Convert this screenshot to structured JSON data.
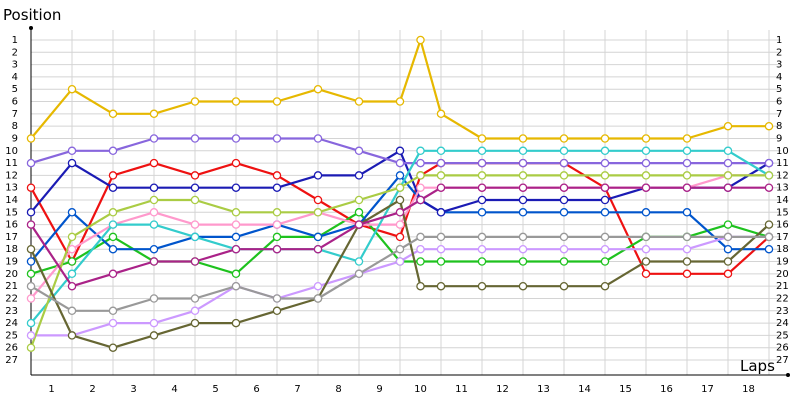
{
  "chart_data": {
    "type": "line",
    "title": "",
    "ylabel": "Position",
    "xlabel": "Laps",
    "x_tick_labels": [
      "1",
      "2",
      "3",
      "4",
      "5",
      "6",
      "7",
      "8",
      "9",
      "10",
      "11",
      "12",
      "13",
      "14",
      "15",
      "16",
      "17",
      "18"
    ],
    "y_tick_labels": [
      "1",
      "2",
      "3",
      "4",
      "5",
      "6",
      "7",
      "8",
      "9",
      "10",
      "11",
      "12",
      "13",
      "14",
      "15",
      "16",
      "17",
      "18",
      "19",
      "20",
      "21",
      "22",
      "23",
      "24",
      "25",
      "26",
      "27"
    ],
    "xlim": [
      0,
      18.2
    ],
    "ylim": [
      1,
      27
    ],
    "y_inverted": true,
    "grid": true,
    "series": [
      {
        "color": "#ee1111",
        "x": [
          0,
          1,
          2,
          3,
          4,
          5,
          6,
          7,
          8,
          9,
          9.5,
          10,
          11,
          12,
          13,
          14,
          15,
          16,
          17,
          18
        ],
        "y": [
          13,
          19,
          12,
          11,
          12,
          11,
          12,
          14,
          16,
          17,
          12,
          11,
          11,
          11,
          11,
          13,
          20,
          20,
          20,
          17
        ]
      },
      {
        "color": "#1ec21e",
        "x": [
          0,
          1,
          2,
          3,
          4,
          5,
          6,
          7,
          8,
          9,
          9.5,
          10,
          11,
          12,
          13,
          14,
          15,
          16,
          17,
          18
        ],
        "y": [
          20,
          19,
          17,
          19,
          19,
          20,
          17,
          17,
          15,
          19,
          19,
          19,
          19,
          19,
          19,
          19,
          17,
          17,
          16,
          17
        ]
      },
      {
        "color": "#0055cc",
        "x": [
          0,
          1,
          2,
          3,
          4,
          5,
          6,
          7,
          8,
          9,
          9.5,
          10,
          11,
          12,
          13,
          14,
          15,
          16,
          17,
          18
        ],
        "y": [
          19,
          15,
          18,
          18,
          17,
          17,
          16,
          17,
          16,
          12,
          14,
          15,
          15,
          15,
          15,
          15,
          15,
          15,
          18,
          18
        ]
      },
      {
        "color": "#1b1bb4",
        "x": [
          0,
          1,
          2,
          3,
          4,
          5,
          6,
          7,
          8,
          9,
          9.5,
          10,
          11,
          12,
          13,
          14,
          15,
          16,
          17,
          18
        ],
        "y": [
          15,
          11,
          13,
          13,
          13,
          13,
          13,
          12,
          12,
          10,
          14,
          15,
          14,
          14,
          14,
          14,
          13,
          13,
          13,
          11
        ]
      },
      {
        "color": "#e6b800",
        "x": [
          0,
          1,
          2,
          3,
          4,
          5,
          6,
          7,
          8,
          9,
          9.5,
          10,
          11,
          12,
          13,
          14,
          15,
          16,
          17,
          18
        ],
        "y": [
          9,
          5,
          7,
          7,
          6,
          6,
          6,
          5,
          6,
          6,
          1,
          7,
          9,
          9,
          9,
          9,
          9,
          9,
          8,
          8
        ]
      },
      {
        "color": "#ff99cc",
        "x": [
          0,
          1,
          2,
          3,
          4,
          5,
          6,
          7,
          8,
          9,
          9.5,
          10,
          11,
          12,
          13,
          14,
          15,
          16,
          17,
          18
        ],
        "y": [
          22,
          18,
          16,
          15,
          16,
          16,
          16,
          15,
          16,
          16,
          13,
          13,
          13,
          13,
          13,
          13,
          13,
          13,
          12,
          12
        ]
      },
      {
        "color": "#8866dd",
        "x": [
          0,
          1,
          2,
          3,
          4,
          5,
          6,
          7,
          8,
          9,
          9.5,
          10,
          11,
          12,
          13,
          14,
          15,
          16,
          17,
          18
        ],
        "y": [
          11,
          10,
          10,
          9,
          9,
          9,
          9,
          9,
          10,
          11,
          11,
          11,
          11,
          11,
          11,
          11,
          11,
          11,
          11,
          11
        ]
      },
      {
        "color": "#33cccc",
        "x": [
          0,
          1,
          2,
          3,
          4,
          5,
          6,
          7,
          8,
          9,
          9.5,
          10,
          11,
          12,
          13,
          14,
          15,
          16,
          17,
          18
        ],
        "y": [
          24,
          20,
          16,
          16,
          17,
          18,
          18,
          18,
          19,
          13,
          10,
          10,
          10,
          10,
          10,
          10,
          10,
          10,
          10,
          12
        ]
      },
      {
        "color": "#cc99ff",
        "x": [
          0,
          1,
          2,
          3,
          4,
          5,
          6,
          7,
          8,
          9,
          9.5,
          10,
          11,
          12,
          13,
          14,
          15,
          16,
          17,
          18
        ],
        "y": [
          25,
          25,
          24,
          24,
          23,
          21,
          22,
          21,
          20,
          19,
          18,
          18,
          18,
          18,
          18,
          18,
          18,
          18,
          17,
          17
        ]
      },
      {
        "color": "#aacc44",
        "x": [
          0,
          1,
          2,
          3,
          4,
          5,
          6,
          7,
          8,
          9,
          9.5,
          10,
          11,
          12,
          13,
          14,
          15,
          16,
          17,
          18
        ],
        "y": [
          26,
          17,
          15,
          14,
          14,
          15,
          15,
          15,
          14,
          13,
          12,
          12,
          12,
          12,
          12,
          12,
          12,
          12,
          12,
          12
        ]
      },
      {
        "color": "#666633",
        "x": [
          0,
          1,
          2,
          3,
          4,
          5,
          6,
          7,
          8,
          9,
          9.5,
          10,
          11,
          12,
          13,
          14,
          15,
          16,
          17,
          18
        ],
        "y": [
          18,
          25,
          26,
          25,
          24,
          24,
          23,
          22,
          16,
          14,
          21,
          21,
          21,
          21,
          21,
          21,
          19,
          19,
          19,
          16
        ]
      },
      {
        "color": "#999999",
        "x": [
          0,
          1,
          2,
          3,
          4,
          5,
          6,
          7,
          8,
          9,
          9.5,
          10,
          11,
          12,
          13,
          14,
          15,
          16,
          17,
          18
        ],
        "y": [
          21,
          23,
          23,
          22,
          22,
          21,
          22,
          22,
          20,
          18,
          17,
          17,
          17,
          17,
          17,
          17,
          17,
          17,
          17,
          17
        ]
      },
      {
        "color": "#aa2288",
        "x": [
          0,
          1,
          2,
          3,
          4,
          5,
          6,
          7,
          8,
          9,
          9.5,
          10,
          11,
          12,
          13,
          14,
          15,
          16,
          17,
          18
        ],
        "y": [
          16,
          21,
          20,
          19,
          19,
          18,
          18,
          18,
          16,
          15,
          14,
          13,
          13,
          13,
          13,
          13,
          13,
          13,
          13,
          13
        ]
      }
    ]
  }
}
